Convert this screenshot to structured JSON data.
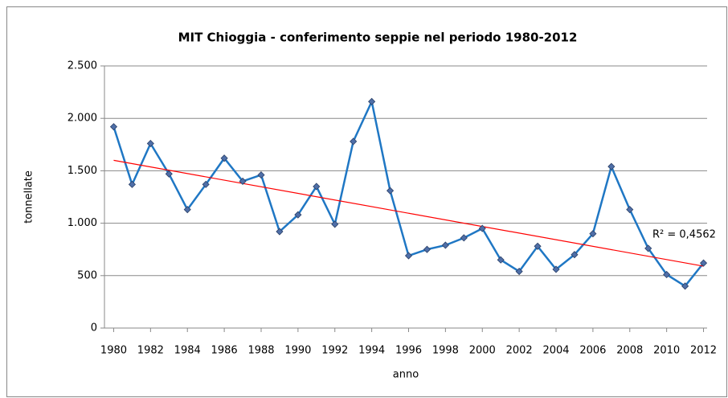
{
  "chart_data": {
    "type": "line",
    "title": "MIT Chioggia - conferimento seppie nel periodo 1980-2012",
    "x_label": "anno",
    "y_label": "tonnellate",
    "x": [
      1980,
      1981,
      1982,
      1983,
      1984,
      1985,
      1986,
      1987,
      1988,
      1989,
      1990,
      1991,
      1992,
      1993,
      1994,
      1995,
      1996,
      1997,
      1998,
      1999,
      2000,
      2001,
      2002,
      2003,
      2004,
      2005,
      2006,
      2007,
      2008,
      2009,
      2010,
      2011,
      2012
    ],
    "series": [
      {
        "color": "#1f77c4",
        "marker_color": "#4f6fa8",
        "values": [
          1920,
          1370,
          1760,
          1470,
          1130,
          1370,
          1620,
          1400,
          1460,
          920,
          1080,
          1350,
          990,
          1780,
          2160,
          1310,
          690,
          750,
          790,
          860,
          950,
          650,
          540,
          780,
          560,
          700,
          900,
          1540,
          1130,
          760,
          510,
          400,
          620
        ]
      }
    ],
    "trendline": {
      "color": "#ff0000",
      "x": [
        1980,
        2012
      ],
      "values": [
        1600,
        590
      ],
      "label": "R² = 0,4562"
    },
    "xlim": [
      1979.5,
      2012.5
    ],
    "xticks": [
      1980,
      1982,
      1984,
      1986,
      1988,
      1990,
      1992,
      1994,
      1996,
      1998,
      2000,
      2002,
      2004,
      2006,
      2008,
      2010,
      2012
    ],
    "ylim": [
      0,
      2500
    ],
    "yticks": [
      0,
      500,
      {
        "value": 1000,
        "label": "1.000"
      },
      {
        "value": 1500,
        "label": "1.500"
      },
      {
        "value": 2000,
        "label": "2.000"
      },
      {
        "value": 2500,
        "label": "2.500"
      }
    ],
    "grid": true
  }
}
